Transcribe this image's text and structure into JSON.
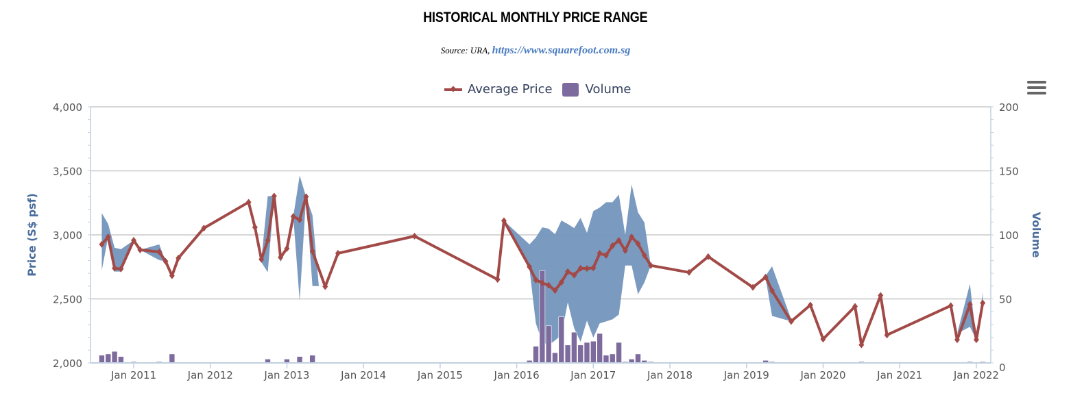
{
  "chart_data": {
    "type": "line",
    "title": "HISTORICAL MONTHLY PRICE RANGE",
    "subtitle_prefix": "Source: URA, ",
    "subtitle_link": "https://www.squarefoot.com.sg",
    "legend": [
      "Average Price",
      "Volume"
    ],
    "legend_position": "top-center",
    "ylabel": "Price (S$ psf)",
    "y2label": "Volume",
    "ylim": [
      2000,
      4000
    ],
    "y_ticks": [
      "2,000",
      "2,500",
      "3,000",
      "3,500",
      "4,000"
    ],
    "y2lim": [
      0,
      200
    ],
    "y2_ticks": [
      "0",
      "50",
      "100",
      "150",
      "200"
    ],
    "x_ticks": [
      "Jan 2011",
      "Jan 2012",
      "Jan 2013",
      "Jan 2014",
      "Jan 2015",
      "Jan 2016",
      "Jan 2017",
      "Jan 2018",
      "Jan 2019",
      "Jan 2020",
      "Jan 2021",
      "Jan 2022"
    ],
    "grid": true,
    "colors": {
      "average_price": "#a24a47",
      "range": "#7395bd",
      "volume": "#7e6b9e"
    },
    "series": [
      {
        "name": "Average Price",
        "type": "line",
        "axis": "left",
        "points": [
          [
            "2010-08",
            2926
          ],
          [
            "2010-09",
            2984
          ],
          [
            "2010-10",
            2739
          ],
          [
            "2010-11",
            2734
          ],
          [
            "2011-01",
            2957
          ],
          [
            "2011-02",
            2883
          ],
          [
            "2011-05",
            2867
          ],
          [
            "2011-06",
            2793
          ],
          [
            "2011-07",
            2681
          ],
          [
            "2011-08",
            2819
          ],
          [
            "2011-12",
            3053
          ],
          [
            "2012-07",
            3255
          ],
          [
            "2012-08",
            3059
          ],
          [
            "2012-09",
            2809
          ],
          [
            "2012-10",
            2957
          ],
          [
            "2012-11",
            3303
          ],
          [
            "2012-12",
            2824
          ],
          [
            "2013-01",
            2894
          ],
          [
            "2013-02",
            3144
          ],
          [
            "2013-03",
            3117
          ],
          [
            "2013-04",
            3298
          ],
          [
            "2013-05",
            2872
          ],
          [
            "2013-07",
            2596
          ],
          [
            "2013-09",
            2856
          ],
          [
            "2014-09",
            2990
          ],
          [
            "2015-10",
            2652
          ],
          [
            "2015-11",
            3110
          ],
          [
            "2016-03",
            2750
          ],
          [
            "2016-04",
            2648
          ],
          [
            "2016-05",
            2625
          ],
          [
            "2016-06",
            2606
          ],
          [
            "2016-07",
            2566
          ],
          [
            "2016-08",
            2630
          ],
          [
            "2016-09",
            2713
          ],
          [
            "2016-10",
            2686
          ],
          [
            "2016-11",
            2739
          ],
          [
            "2016-12",
            2737
          ],
          [
            "2017-01",
            2742
          ],
          [
            "2017-02",
            2856
          ],
          [
            "2017-03",
            2840
          ],
          [
            "2017-04",
            2915
          ],
          [
            "2017-05",
            2957
          ],
          [
            "2017-06",
            2878
          ],
          [
            "2017-07",
            2984
          ],
          [
            "2017-08",
            2931
          ],
          [
            "2017-09",
            2840
          ],
          [
            "2017-10",
            2761
          ],
          [
            "2018-04",
            2707
          ],
          [
            "2018-07",
            2830
          ],
          [
            "2019-02",
            2590
          ],
          [
            "2019-04",
            2670
          ],
          [
            "2019-05",
            2564
          ],
          [
            "2019-08",
            2324
          ],
          [
            "2019-11",
            2452
          ],
          [
            "2020-01",
            2186
          ],
          [
            "2020-06",
            2441
          ],
          [
            "2020-07",
            2141
          ],
          [
            "2020-10",
            2527
          ],
          [
            "2020-11",
            2218
          ],
          [
            "2021-09",
            2447
          ],
          [
            "2021-10",
            2181
          ],
          [
            "2021-12",
            2457
          ],
          [
            "2022-01",
            2181
          ],
          [
            "2022-02",
            2468
          ]
        ]
      },
      {
        "name": "Price Range",
        "type": "arearange",
        "axis": "left",
        "points": [
          [
            "2010-08",
            2723,
            3170
          ],
          [
            "2010-09",
            2984,
            3085
          ],
          [
            "2010-10",
            2713,
            2900
          ],
          [
            "2010-11",
            2713,
            2888
          ],
          [
            "2011-01",
            2957,
            2957
          ],
          [
            "2011-02",
            2883,
            2883
          ],
          [
            "2011-05",
            2803,
            2926
          ],
          [
            "2011-06",
            2793,
            2793
          ],
          [
            "2011-07",
            2681,
            2681
          ],
          [
            "2011-08",
            2819,
            2819
          ],
          [
            "2011-12",
            3053,
            3053
          ],
          [
            "2012-07",
            3255,
            3255
          ],
          [
            "2012-08",
            3059,
            3059
          ],
          [
            "2012-09",
            2787,
            2809
          ],
          [
            "2012-10",
            2707,
            3303
          ],
          [
            "2012-11",
            3303,
            3303
          ],
          [
            "2012-12",
            2787,
            2824
          ],
          [
            "2013-01",
            2894,
            2894
          ],
          [
            "2013-02",
            3144,
            3144
          ],
          [
            "2013-03",
            2484,
            3463
          ],
          [
            "2013-04",
            3298,
            3298
          ],
          [
            "2013-05",
            2600,
            3154
          ],
          [
            "2013-06",
            2600,
            2600
          ],
          [
            "2013-07",
            2596,
            2600
          ],
          [
            "2013-09",
            2856,
            2856
          ],
          [
            "2014-09",
            2990,
            2990
          ],
          [
            "2015-10",
            2652,
            2652
          ],
          [
            "2015-11",
            3110,
            3110
          ],
          [
            "2016-03",
            2734,
            2926
          ],
          [
            "2016-04",
            2309,
            2979
          ],
          [
            "2016-05",
            2165,
            3059
          ],
          [
            "2016-06",
            2138,
            3048
          ],
          [
            "2016-07",
            2176,
            3005
          ],
          [
            "2016-08",
            2218,
            3112
          ],
          [
            "2016-09",
            2473,
            3085
          ],
          [
            "2016-10",
            2271,
            3053
          ],
          [
            "2016-11",
            2165,
            3133
          ],
          [
            "2016-12",
            2330,
            3016
          ],
          [
            "2017-01",
            2197,
            3186
          ],
          [
            "2017-02",
            2309,
            3213
          ],
          [
            "2017-03",
            2324,
            3255
          ],
          [
            "2017-04",
            2340,
            3255
          ],
          [
            "2017-05",
            2378,
            3314
          ],
          [
            "2017-06",
            2761,
            3000
          ],
          [
            "2017-07",
            2761,
            3394
          ],
          [
            "2017-08",
            2537,
            3176
          ],
          [
            "2017-09",
            2628,
            3096
          ],
          [
            "2017-10",
            2761,
            2761
          ],
          [
            "2018-04",
            2707,
            2707
          ],
          [
            "2018-07",
            2830,
            2830
          ],
          [
            "2019-02",
            2590,
            2590
          ],
          [
            "2019-04",
            2660,
            2681
          ],
          [
            "2019-05",
            2367,
            2755
          ],
          [
            "2019-08",
            2324,
            2340
          ],
          [
            "2019-11",
            2452,
            2452
          ],
          [
            "2020-01",
            2186,
            2186
          ],
          [
            "2020-06",
            2441,
            2441
          ],
          [
            "2020-07",
            2141,
            2141
          ],
          [
            "2020-10",
            2527,
            2527
          ],
          [
            "2020-11",
            2218,
            2218
          ],
          [
            "2021-09",
            2447,
            2447
          ],
          [
            "2021-10",
            2230,
            2230
          ],
          [
            "2021-12",
            2282,
            2617
          ],
          [
            "2022-01",
            2181,
            2181
          ],
          [
            "2022-02",
            2468,
            2553
          ]
        ]
      },
      {
        "name": "Volume",
        "type": "column",
        "axis": "right",
        "points": [
          [
            "2010-08",
            6
          ],
          [
            "2010-09",
            7
          ],
          [
            "2010-10",
            9
          ],
          [
            "2010-11",
            5
          ],
          [
            "2011-01",
            1
          ],
          [
            "2011-05",
            1
          ],
          [
            "2011-07",
            7
          ],
          [
            "2012-10",
            3
          ],
          [
            "2013-01",
            3
          ],
          [
            "2013-03",
            5
          ],
          [
            "2013-05",
            6
          ],
          [
            "2016-03",
            2
          ],
          [
            "2016-04",
            13
          ],
          [
            "2016-05",
            72
          ],
          [
            "2016-06",
            29
          ],
          [
            "2016-07",
            8
          ],
          [
            "2016-08",
            36
          ],
          [
            "2016-09",
            14
          ],
          [
            "2016-10",
            24
          ],
          [
            "2016-11",
            14
          ],
          [
            "2016-12",
            16
          ],
          [
            "2017-01",
            17
          ],
          [
            "2017-02",
            23
          ],
          [
            "2017-03",
            6
          ],
          [
            "2017-04",
            7
          ],
          [
            "2017-05",
            16
          ],
          [
            "2017-06",
            1
          ],
          [
            "2017-07",
            3
          ],
          [
            "2017-08",
            7
          ],
          [
            "2017-09",
            2
          ],
          [
            "2017-10",
            1
          ],
          [
            "2019-04",
            2
          ],
          [
            "2019-05",
            1
          ],
          [
            "2020-07",
            1
          ],
          [
            "2021-12",
            1
          ],
          [
            "2022-02",
            1
          ]
        ]
      }
    ]
  },
  "ui": {
    "menu_icon": "hamburger-menu-icon"
  }
}
